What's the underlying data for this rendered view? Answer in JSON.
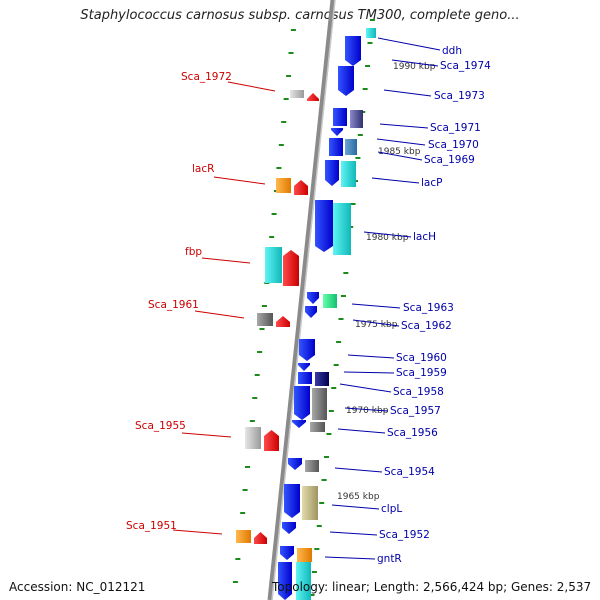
{
  "title": "Staphylococcus carnosus subsp. carnosus TM300, complete geno...",
  "footer": {
    "accession": "Accession: NC_012121",
    "topology": "Topology: linear; Length: 2,566,424 bp; Genes: 2,537"
  },
  "colors": {
    "left_label": "#cc0000",
    "right_label": "#0000aa",
    "backbone": "#8a8a8a",
    "tick": "#1a8a1a"
  },
  "scale_labels": [
    "1990 kbp",
    "1985 kbp",
    "1980 kbp",
    "1975 kbp",
    "1970 kbp",
    "1965 kbp"
  ],
  "left_genes": [
    {
      "label": "Sca_1972",
      "color": "red"
    },
    {
      "label": "lacR",
      "color": "red"
    },
    {
      "label": "fbp",
      "color": "red"
    },
    {
      "label": "Sca_1961",
      "color": "red"
    },
    {
      "label": "Sca_1955",
      "color": "red"
    },
    {
      "label": "Sca_1951",
      "color": "red"
    }
  ],
  "right_genes": [
    {
      "label": "ddh",
      "color": "cyan"
    },
    {
      "label": "Sca_1974",
      "color": "blue"
    },
    {
      "label": "Sca_1973",
      "color": "blue"
    },
    {
      "label": "Sca_1971",
      "color": "slate"
    },
    {
      "label": "Sca_1970",
      "color": "blue"
    },
    {
      "label": "Sca_1969",
      "color": "steelblue"
    },
    {
      "label": "lacP",
      "color": "cyan"
    },
    {
      "label": "lacH",
      "color": "cyan"
    },
    {
      "label": "Sca_1963",
      "color": "green"
    },
    {
      "label": "Sca_1962",
      "color": "blue"
    },
    {
      "label": "Sca_1960",
      "color": "blue"
    },
    {
      "label": "Sca_1959",
      "color": "blue"
    },
    {
      "label": "Sca_1958",
      "color": "navy"
    },
    {
      "label": "Sca_1957",
      "color": "gray"
    },
    {
      "label": "Sca_1956",
      "color": "blue"
    },
    {
      "label": "Sca_1954",
      "color": "gray"
    },
    {
      "label": "clpL",
      "color": "khaki"
    },
    {
      "label": "Sca_1952",
      "color": "blue"
    },
    {
      "label": "gntR",
      "color": "orange"
    }
  ]
}
